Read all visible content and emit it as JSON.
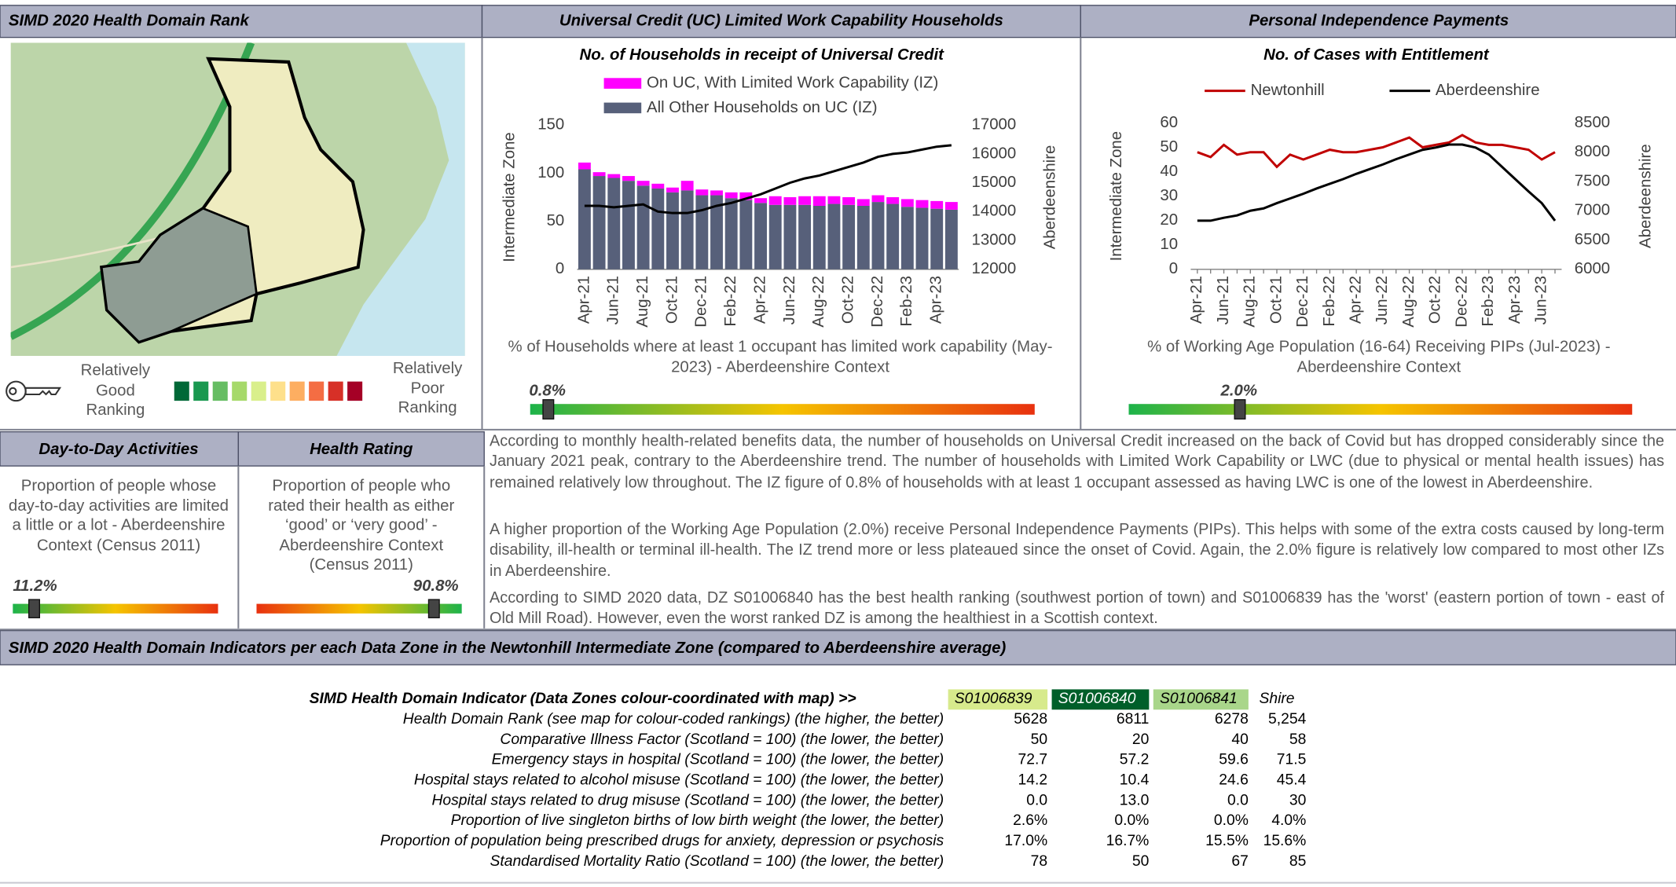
{
  "map_panel": {
    "header": "SIMD 2020 Health Domain Rank",
    "key_good": "Relatively Good Ranking",
    "key_poor": "Relatively Poor Ranking"
  },
  "uc_panel": {
    "header": "Universal Credit (UC) Limited Work Capability Households",
    "chart_data": {
      "type": "bar",
      "title": "No. of Households in receipt of Universal Credit",
      "categories": [
        "Apr-21",
        null,
        "Jun-21",
        null,
        "Aug-21",
        null,
        "Oct-21",
        null,
        "Dec-21",
        null,
        "Feb-22",
        null,
        "Apr-22",
        null,
        "Jun-22",
        null,
        "Aug-22",
        null,
        "Oct-22",
        null,
        "Dec-22",
        null,
        "Feb-23",
        null,
        "Apr-23",
        null
      ],
      "series": [
        {
          "name": "On UC, With Limited Work Capability (IZ)",
          "color": "#ff00ff",
          "values": [
            7,
            4,
            4,
            5,
            5,
            5,
            5,
            10,
            6,
            5,
            6,
            8,
            5,
            9,
            8,
            9,
            10,
            8,
            8,
            7,
            7,
            7,
            8,
            8,
            8,
            8
          ]
        },
        {
          "name": "All Other Households on UC (IZ)",
          "color": "#57607a",
          "values": [
            104,
            97,
            95,
            92,
            87,
            84,
            80,
            82,
            77,
            77,
            74,
            72,
            69,
            67,
            67,
            67,
            66,
            68,
            67,
            66,
            70,
            68,
            65,
            64,
            63,
            62
          ]
        },
        {
          "type": "line",
          "axis": "y2",
          "color": "#000000",
          "values": [
            14200,
            14200,
            14150,
            14200,
            14250,
            14000,
            13950,
            13950,
            14050,
            14200,
            14300,
            14450,
            14600,
            14800,
            15000,
            15150,
            15250,
            15400,
            15550,
            15700,
            15900,
            16000,
            16050,
            16150,
            16250,
            16300
          ]
        }
      ],
      "ylabel": "Intermediate Zone",
      "y2label": "Aberdeenshire",
      "ylim": [
        0,
        150
      ],
      "yticks": [
        0,
        50,
        100,
        150
      ],
      "y2lim": [
        12000,
        17000
      ],
      "y2ticks": [
        12000,
        13000,
        14000,
        15000,
        16000,
        17000
      ]
    },
    "indicator": {
      "label": "% of Households where at least 1 occupant has limited work capability (May-2023) - Aberdeenshire Context",
      "value": "0.8%"
    }
  },
  "pip_panel": {
    "header": "Personal Independence Payments",
    "chart_data": {
      "type": "line",
      "title": "No. of Cases with Entitlement",
      "categories": [
        "Apr-21",
        null,
        "Jun-21",
        null,
        "Aug-21",
        null,
        "Oct-21",
        null,
        "Dec-21",
        null,
        "Feb-22",
        null,
        "Apr-22",
        null,
        "Jun-22",
        null,
        "Aug-22",
        null,
        "Oct-22",
        null,
        "Dec-22",
        null,
        "Feb-23",
        null,
        "Apr-23",
        null,
        "Jun-23",
        null
      ],
      "series": [
        {
          "name": "Newtonhill",
          "color": "#c00000",
          "values": [
            48,
            46,
            51,
            47,
            48,
            48,
            42,
            47,
            45,
            47,
            49,
            48,
            48,
            49,
            50,
            52,
            54,
            50,
            51,
            52,
            55,
            52,
            51,
            51,
            50,
            49,
            45,
            48
          ]
        },
        {
          "name": "Aberdeenshire",
          "color": "#000000",
          "axis": "y2",
          "values": [
            6830,
            6830,
            6880,
            6920,
            7000,
            7040,
            7130,
            7210,
            7290,
            7380,
            7460,
            7540,
            7630,
            7710,
            7790,
            7880,
            7960,
            8040,
            8080,
            8130,
            8130,
            8080,
            7960,
            7750,
            7540,
            7330,
            7130,
            6830
          ]
        }
      ],
      "ylabel": "Intermediate Zone",
      "y2label": "Aberdeenshire",
      "ylim": [
        0,
        60
      ],
      "yticks": [
        0,
        10,
        20,
        30,
        40,
        50,
        60
      ],
      "y2lim": [
        6000,
        8500
      ],
      "y2ticks": [
        6000,
        6500,
        7000,
        7500,
        8000,
        8500
      ]
    },
    "indicator": {
      "label": "% of Working Age Population (16-64) Receiving PIPs (Jul-2023) - Aberdeenshire Context",
      "value": "2.0%"
    }
  },
  "day_to_day": {
    "header": "Day-to-Day Activities",
    "text": "Proportion of people whose day-to-day activities are limited a little or a lot - Aberdeenshire Context (Census 2011)",
    "value": "11.2%"
  },
  "health_rating": {
    "header": "Health Rating",
    "text": "Proportion of people who rated their health as either ‘good’ or ‘very good’ - Aberdeenshire Context (Census 2011)",
    "value": "90.8%"
  },
  "commentary": [
    "According to monthly health-related benefits data, the number of households on Universal Credit increased on the back of Covid but has dropped considerably since the January 2021 peak, contrary to the Aberdeenshire trend.  The number of households with Limited Work Capability or LWC (due to physical or mental health issues) has remained relatively low throughout.  The IZ figure of 0.8% of households with at least 1 occupant assessed as having LWC is one of the lowest in Aberdeenshire.",
    "A higher proportion of the Working Age Population (2.0%) receive Personal Independence Payments (PIPs).  This helps with some of the extra costs caused by long-term disability, ill-health or terminal ill-health.  The IZ trend more or less plateaued since the onset of Covid.  Again, the 2.0% figure is relatively low compared to most other IZs in Aberdeenshire.",
    "According to SIMD 2020 data, DZ S01006840 has the best health ranking (southwest portion of town) and S01006839 has the 'worst' (eastern portion of town - east of Old Mill Road).  However, even the worst ranked DZ is among the healthiest in a Scottish context."
  ],
  "table": {
    "header": "SIMD 2020 Health Domain Indicators per each Data Zone in the Newtonhill Intermediate Zone (compared to Aberdeenshire average)",
    "columns": [
      "SIMD Health Domain Indicator (Data Zones colour-coordinated with map) >>",
      "S01006839",
      "S01006840",
      "S01006841",
      "Shire"
    ],
    "rows": [
      [
        "Health Domain Rank (see map for colour-coded rankings) (the higher, the better)",
        "5628",
        "6811",
        "6278",
        "5,254"
      ],
      [
        "Comparative Illness Factor (Scotland = 100) (the lower, the better)",
        "50",
        "20",
        "40",
        "58"
      ],
      [
        "Emergency stays in hospital (Scotland = 100) (the lower, the better)",
        "72.7",
        "57.2",
        "59.6",
        "71.5"
      ],
      [
        "Hospital stays related to alcohol misuse (Scotland = 100) (the lower, the better)",
        "14.2",
        "10.4",
        "24.6",
        "45.4"
      ],
      [
        "Hospital stays related to drug misuse (Scotland = 100) (the lower, the better)",
        "0.0",
        "13.0",
        "0.0",
        "30"
      ],
      [
        "Proportion of live singleton births of low birth weight (the lower, the better)",
        "2.6%",
        "0.0%",
        "0.0%",
        "4.0%"
      ],
      [
        "Proportion of population being prescribed drugs for anxiety, depression or psychosis",
        "17.0%",
        "16.7%",
        "15.5%",
        "15.6%"
      ],
      [
        "Standardised Mortality Ratio (Scotland = 100) (the lower, the better)",
        "78",
        "50",
        "67",
        "85"
      ]
    ]
  }
}
